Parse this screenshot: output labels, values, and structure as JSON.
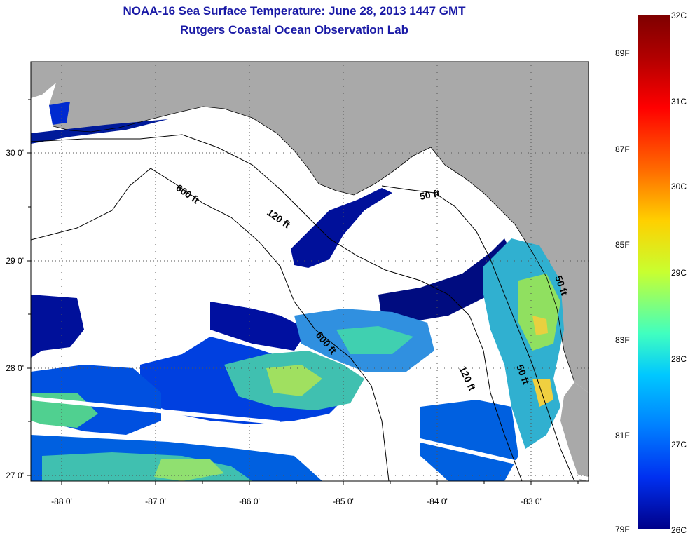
{
  "title": {
    "line1": "NOAA-16 Sea Surface Temperature:  June 28, 2013 1447 GMT",
    "line2": "Rutgers Coastal Ocean Observation Lab"
  },
  "axes": {
    "x_ticks": [
      "-88 0'",
      "-87 0'",
      "-86 0'",
      "-85 0'",
      "-84 0'",
      "-83 0'"
    ],
    "y_ticks": [
      "30 0'",
      "29 0'",
      "28 0'",
      "27 0'"
    ]
  },
  "contours": [
    {
      "label": "600 ft"
    },
    {
      "label": "120 ft"
    },
    {
      "label": "50 ft"
    },
    {
      "label": "600 ft"
    },
    {
      "label": "120 ft"
    },
    {
      "label": "50 ft"
    },
    {
      "label": "50 ft"
    }
  ],
  "colorbar": {
    "fahrenheit": [
      "89F",
      "87F",
      "85F",
      "83F",
      "81F",
      "79F"
    ],
    "celsius": [
      "32C",
      "31C",
      "30C",
      "29C",
      "28C",
      "27C",
      "26C"
    ]
  },
  "colors": {
    "land": "#a9a9a9",
    "no_data": "#ffffff",
    "title": "#1a1aa6",
    "cold": "#00008a",
    "warm": "#7f0000"
  }
}
